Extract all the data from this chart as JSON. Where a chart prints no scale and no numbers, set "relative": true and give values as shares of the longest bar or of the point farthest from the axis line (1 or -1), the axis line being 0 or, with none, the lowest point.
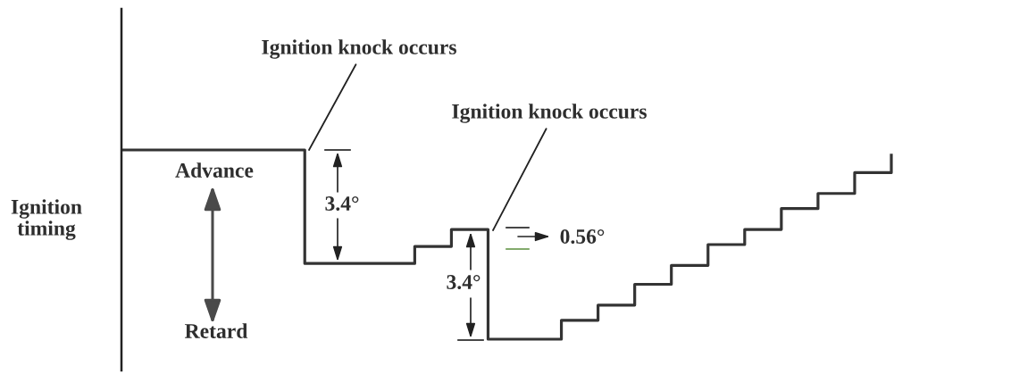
{
  "chart_data": {
    "type": "step",
    "relative": true,
    "ylabel": "Ignition timing",
    "categories": [
      null,
      null,
      null,
      null,
      null,
      null,
      null,
      null,
      null,
      null,
      null,
      null,
      null,
      null,
      null,
      null,
      null,
      null,
      null,
      null,
      null,
      null
    ],
    "series": [
      {
        "color": "#333333",
        "values": [
          1.0,
          1.0,
          1.0,
          1.0,
          1.0,
          0.4,
          0.4,
          0.4,
          0.49,
          0.58,
          0,
          0,
          0.1,
          0.18,
          0.29,
          0.39,
          0.5,
          0.58,
          0.69,
          0.77,
          0.88,
          0.98
        ]
      }
    ],
    "annotations": [
      "Ignition knock occurs",
      "Ignition knock occurs",
      "Advance",
      "Retard",
      "3.4°",
      "3.4°",
      "0.56°"
    ]
  }
}
